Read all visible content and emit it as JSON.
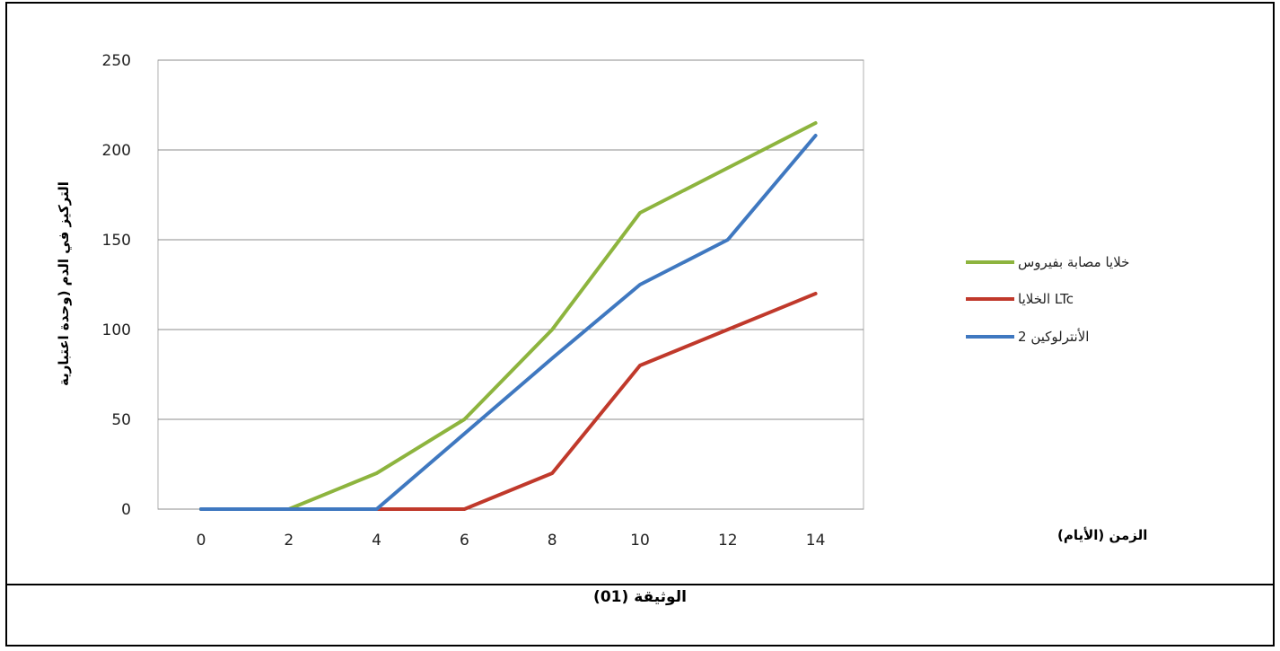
{
  "document": {
    "caption": "الوثيقة (01)"
  },
  "chart_data": {
    "type": "line",
    "x": [
      0,
      2,
      4,
      6,
      8,
      10,
      12,
      14
    ],
    "xticks": [
      "0",
      "2",
      "4",
      "6",
      "8",
      "10",
      "12",
      "14"
    ],
    "yticks": [
      "0",
      "50",
      "100",
      "150",
      "200",
      "250"
    ],
    "ylim": [
      0,
      250
    ],
    "xlabel": "الزمن (الأيام)",
    "ylabel": "التركيز في الدم (وحدة اعتبارية",
    "grid": "horizontal",
    "legend_position": "right",
    "series": [
      {
        "name": "خلايا مصابة بفيروس",
        "color": "#8DB43E",
        "values": [
          0,
          0,
          20,
          50,
          100,
          165,
          190,
          215
        ]
      },
      {
        "name": "الخلايا LTc",
        "color": "#C0392B",
        "values": [
          0,
          0,
          0,
          0,
          20,
          80,
          100,
          120
        ]
      },
      {
        "name": "الأنترلوكين 2",
        "color": "#3F78C0",
        "values": [
          0,
          0,
          0,
          42,
          84,
          125,
          150,
          208
        ]
      }
    ]
  }
}
